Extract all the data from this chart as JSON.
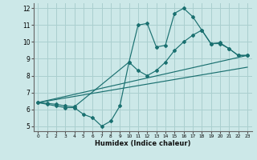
{
  "xlabel": "Humidex (Indice chaleur)",
  "bg_color": "#cce8e8",
  "grid_color": "#aacfcf",
  "line_color": "#1a7070",
  "xlim": [
    -0.5,
    23.5
  ],
  "ylim": [
    4.7,
    12.3
  ],
  "xticks": [
    0,
    1,
    2,
    3,
    4,
    5,
    6,
    7,
    8,
    9,
    10,
    11,
    12,
    13,
    14,
    15,
    16,
    17,
    18,
    19,
    20,
    21,
    22,
    23
  ],
  "yticks": [
    5,
    6,
    7,
    8,
    9,
    10,
    11,
    12
  ],
  "line1_x": [
    0,
    1,
    2,
    3,
    4,
    5,
    6,
    7,
    8,
    9,
    10,
    11,
    12,
    13,
    14,
    15,
    16,
    17,
    18,
    19,
    20,
    21,
    22,
    23
  ],
  "line1_y": [
    6.4,
    6.3,
    6.2,
    6.1,
    6.1,
    5.7,
    5.5,
    5.0,
    5.3,
    6.2,
    8.8,
    11.0,
    11.1,
    9.7,
    9.8,
    11.7,
    12.0,
    11.5,
    10.7,
    9.9,
    9.95,
    9.6,
    9.2,
    9.2
  ],
  "line2_x": [
    0,
    1,
    2,
    3,
    4,
    10,
    11,
    12,
    13,
    14,
    15,
    16,
    17,
    18,
    19,
    20,
    21,
    22,
    23
  ],
  "line2_y": [
    6.4,
    6.35,
    6.3,
    6.2,
    6.15,
    8.8,
    8.3,
    8.0,
    8.3,
    8.8,
    9.5,
    10.0,
    10.4,
    10.7,
    9.9,
    9.9,
    9.6,
    9.2,
    9.2
  ],
  "line3_x": [
    0,
    23
  ],
  "line3_y": [
    6.4,
    9.2
  ],
  "line4_x": [
    0,
    23
  ],
  "line4_y": [
    6.4,
    8.5
  ]
}
